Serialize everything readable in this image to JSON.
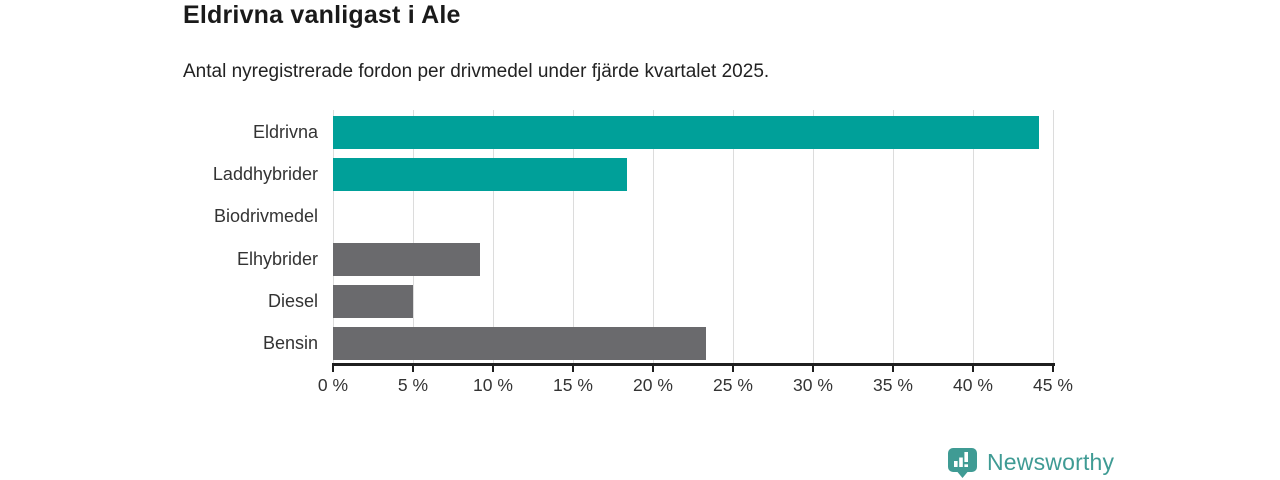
{
  "header": {
    "title": "Eldrivna vanligast i Ale",
    "subtitle": "Antal nyregistrerade fordon per drivmedel under fjärde kvartalet 2025."
  },
  "chart_data": {
    "type": "bar",
    "orientation": "horizontal",
    "title": "Eldrivna vanligast i Ale",
    "subtitle": "Antal nyregistrerade fordon per drivmedel under fjärde kvartalet 2025.",
    "categories": [
      "Eldrivna",
      "Laddhybrider",
      "Biodrivmedel",
      "Elhybrider",
      "Diesel",
      "Bensin"
    ],
    "values": [
      44.1,
      18.4,
      0,
      9.2,
      5.0,
      23.3
    ],
    "unit": "%",
    "xlim": [
      0,
      45
    ],
    "x_ticks": [
      0,
      5,
      10,
      15,
      20,
      25,
      30,
      35,
      40,
      45
    ],
    "x_tick_labels": [
      "0 %",
      "5 %",
      "10 %",
      "15 %",
      "20 %",
      "25 %",
      "30 %",
      "35 %",
      "40 %",
      "45 %"
    ],
    "bar_colors": [
      "#00a099",
      "#00a099",
      "#6a6a6d",
      "#6a6a6d",
      "#6a6a6d",
      "#6a6a6d"
    ],
    "grid": true,
    "legend": "none"
  },
  "branding": {
    "wordmark": "Newsworthy",
    "icon": "newsworthy-pin-bar-chart-icon",
    "logo_color": "#3f9b94"
  },
  "colors": {
    "highlight_teal": "#00a099",
    "neutral_gray": "#6a6a6d",
    "axis": "#1f1f1f",
    "gridline": "#dcdcdc",
    "text": "#333333",
    "title_text": "#1a1a1a"
  }
}
